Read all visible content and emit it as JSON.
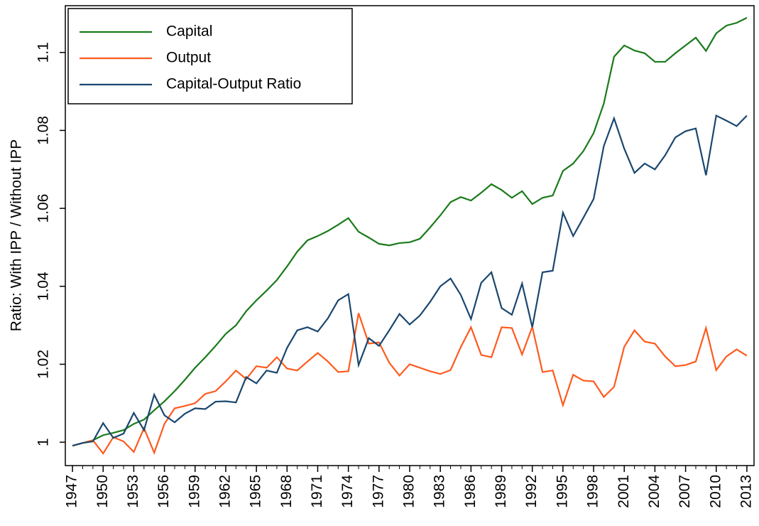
{
  "chart_data": {
    "type": "line",
    "y_label": "Ratio: With IPP / Without IPP",
    "x": [
      1947,
      1948,
      1949,
      1950,
      1951,
      1952,
      1953,
      1954,
      1955,
      1956,
      1957,
      1958,
      1959,
      1960,
      1961,
      1962,
      1963,
      1964,
      1965,
      1966,
      1967,
      1968,
      1969,
      1970,
      1971,
      1972,
      1973,
      1974,
      1975,
      1976,
      1977,
      1978,
      1979,
      1980,
      1981,
      1982,
      1983,
      1984,
      1985,
      1986,
      1987,
      1988,
      1989,
      1990,
      1991,
      1992,
      1993,
      1994,
      1995,
      1996,
      1997,
      1998,
      1999,
      2000,
      2001,
      2002,
      2003,
      2004,
      2005,
      2006,
      2007,
      2008,
      2009,
      2010,
      2011,
      2012,
      2013
    ],
    "series": [
      {
        "name": "Capital",
        "color": "#1a7a1a",
        "values": [
          0.9991,
          0.9998,
          1.0005,
          1.0018,
          1.0024,
          1.0031,
          1.0047,
          1.0058,
          1.0082,
          1.0105,
          1.0131,
          1.016,
          1.0191,
          1.0218,
          1.0247,
          1.0278,
          1.03,
          1.0336,
          1.0364,
          1.0389,
          1.0416,
          1.0451,
          1.0489,
          1.0518,
          1.0529,
          1.0542,
          1.0558,
          1.0575,
          1.054,
          1.0525,
          1.0509,
          1.0505,
          1.0511,
          1.0513,
          1.0522,
          1.0551,
          1.0582,
          1.0616,
          1.0629,
          1.062,
          1.064,
          1.0662,
          1.0647,
          1.0627,
          1.0644,
          1.0611,
          1.0627,
          1.0633,
          1.0696,
          1.0715,
          1.0747,
          1.0793,
          1.0869,
          1.0989,
          1.1018,
          1.1005,
          1.0998,
          1.0976,
          1.0976,
          1.0998,
          1.1018,
          1.1038,
          1.1004,
          1.1049,
          1.1069,
          1.1076,
          1.1089
        ]
      },
      {
        "name": "Output",
        "color": "#ff5a1e",
        "values": [
          0.9991,
          0.9998,
          1.0005,
          0.9971,
          1.0013,
          1.0002,
          0.9975,
          1.0036,
          0.9973,
          1.0047,
          1.0087,
          1.0093,
          1.01,
          1.0124,
          1.0131,
          1.0156,
          1.0184,
          1.0162,
          1.0195,
          1.0191,
          1.0218,
          1.0189,
          1.0184,
          1.0207,
          1.0229,
          1.0207,
          1.018,
          1.0182,
          1.0331,
          1.0253,
          1.0256,
          1.0204,
          1.0171,
          1.02,
          1.0191,
          1.0182,
          1.0175,
          1.0185,
          1.0244,
          1.0295,
          1.0224,
          1.0218,
          1.0295,
          1.0293,
          1.0225,
          1.0296,
          1.018,
          1.0184,
          1.0095,
          1.0173,
          1.0158,
          1.0156,
          1.0116,
          1.0142,
          1.0245,
          1.0287,
          1.0258,
          1.0253,
          1.022,
          1.0195,
          1.0198,
          1.0207,
          1.0293,
          1.0185,
          1.022,
          1.0238,
          1.0222
        ]
      },
      {
        "name": "Capital-Output Ratio",
        "color": "#1a476f",
        "values": [
          0.9991,
          0.9998,
          1.0002,
          1.0049,
          1.0011,
          1.0022,
          1.0075,
          1.0031,
          1.0122,
          1.0069,
          1.0051,
          1.0073,
          1.0087,
          1.0085,
          1.0104,
          1.0105,
          1.0102,
          1.0167,
          1.0151,
          1.0184,
          1.0178,
          1.0242,
          1.0287,
          1.0295,
          1.0284,
          1.0318,
          1.0364,
          1.038,
          1.0198,
          1.0267,
          1.0247,
          1.0287,
          1.0329,
          1.0302,
          1.0325,
          1.036,
          1.04,
          1.042,
          1.0378,
          1.0316,
          1.0409,
          1.0436,
          1.0344,
          1.0327,
          1.0407,
          1.0295,
          1.0436,
          1.044,
          1.0589,
          1.0529,
          1.0576,
          1.0624,
          1.076,
          1.0831,
          1.0753,
          1.0691,
          1.0715,
          1.07,
          1.0736,
          1.0782,
          1.0798,
          1.0805,
          1.0685,
          1.0838,
          1.0825,
          1.0811,
          1.0838
        ]
      }
    ],
    "xlim": [
      1946.3,
      2013.7
    ],
    "xticks": [
      1947,
      1950,
      1953,
      1956,
      1959,
      1962,
      1965,
      1968,
      1971,
      1974,
      1977,
      1980,
      1983,
      1986,
      1989,
      1992,
      1995,
      1998,
      2001,
      2004,
      2007,
      2010,
      2013
    ],
    "ylim": [
      0.994,
      1.112
    ],
    "yticks": [
      1,
      1.02,
      1.04,
      1.06,
      1.08,
      1.1
    ],
    "legend": "top-left"
  }
}
